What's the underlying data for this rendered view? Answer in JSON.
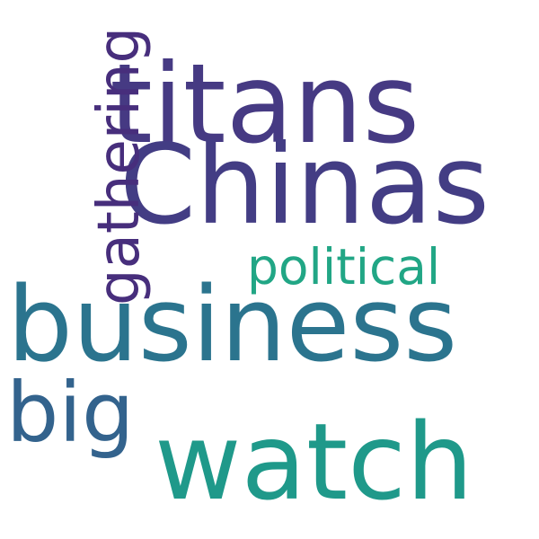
{
  "word_cloud": {
    "words": [
      {
        "text": "titans",
        "color": "#463a83"
      },
      {
        "text": "Chinas",
        "color": "#433d84"
      },
      {
        "text": "gathering",
        "color": "#472e7c"
      },
      {
        "text": "political",
        "color": "#21a685"
      },
      {
        "text": "business",
        "color": "#2b748e"
      },
      {
        "text": "big",
        "color": "#33638d"
      },
      {
        "text": "watch",
        "color": "#1f998a"
      }
    ]
  }
}
